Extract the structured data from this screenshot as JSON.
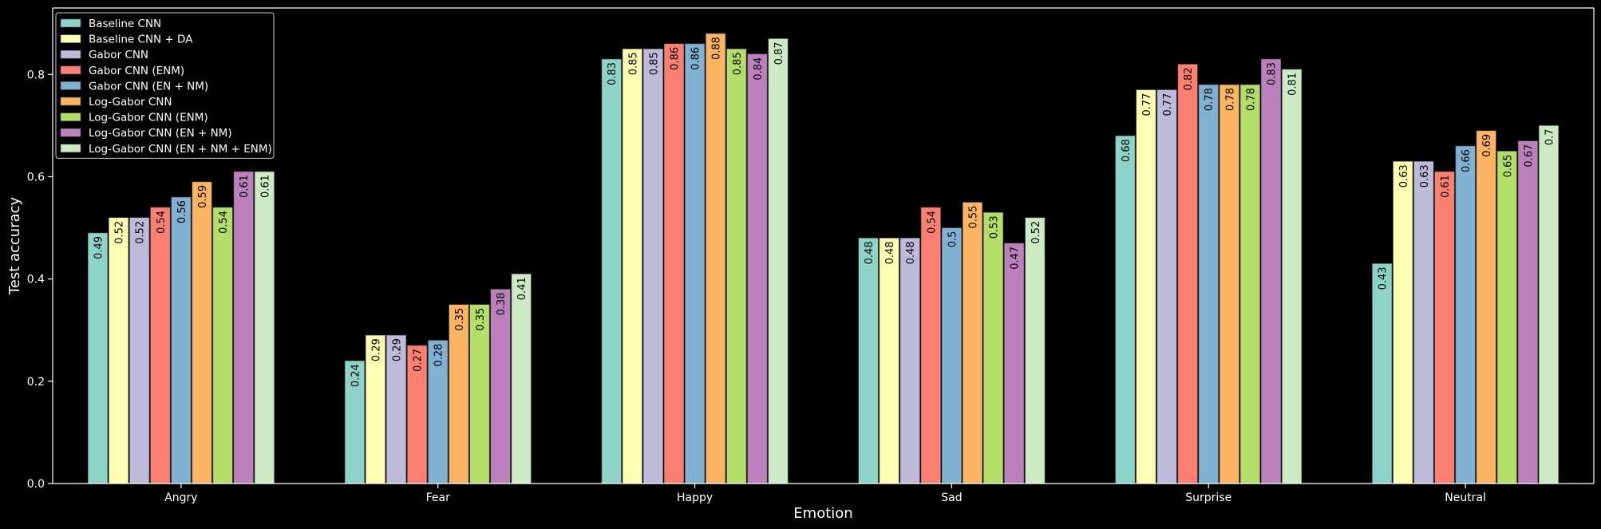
{
  "chart_data": {
    "type": "bar",
    "xlabel": "Emotion",
    "ylabel": "Test accuracy",
    "ylim": [
      0,
      0.93
    ],
    "yticks": [
      0.0,
      0.2,
      0.4,
      0.6,
      0.8
    ],
    "ytick_labels": [
      "0.0",
      "0.2",
      "0.4",
      "0.6",
      "0.8"
    ],
    "categories": [
      "Angry",
      "Fear",
      "Happy",
      "Sad",
      "Surprise",
      "Neutral"
    ],
    "legend_position": "top-left",
    "grid": false,
    "series": [
      {
        "name": "Baseline CNN",
        "color": "#8dd3c7",
        "values": [
          0.49,
          0.24,
          0.83,
          0.48,
          0.68,
          0.43
        ],
        "labels": [
          "0.49",
          "0.24",
          "0.83",
          "0.48",
          "0.68",
          "0.43"
        ]
      },
      {
        "name": "Baseline CNN + DA",
        "color": "#ffffb3",
        "values": [
          0.52,
          0.29,
          0.85,
          0.48,
          0.77,
          0.63
        ],
        "labels": [
          "0.52",
          "0.29",
          "0.85",
          "0.48",
          "0.77",
          "0.63"
        ]
      },
      {
        "name": "Gabor CNN",
        "color": "#bebada",
        "values": [
          0.52,
          0.29,
          0.85,
          0.48,
          0.77,
          0.63
        ],
        "labels": [
          "0.52",
          "0.29",
          "0.85",
          "0.48",
          "0.77",
          "0.63"
        ]
      },
      {
        "name": "Gabor CNN (ENM)",
        "color": "#fb8072",
        "values": [
          0.54,
          0.27,
          0.86,
          0.54,
          0.82,
          0.61
        ],
        "labels": [
          "0.54",
          "0.27",
          "0.86",
          "0.54",
          "0.82",
          "0.61"
        ]
      },
      {
        "name": "Gabor CNN (EN + NM)",
        "color": "#80b1d3",
        "values": [
          0.56,
          0.28,
          0.86,
          0.5,
          0.78,
          0.66
        ],
        "labels": [
          "0.56",
          "0.28",
          "0.86",
          "0.5",
          "0.78",
          "0.66"
        ]
      },
      {
        "name": "Log-Gabor CNN",
        "color": "#fdb462",
        "values": [
          0.59,
          0.35,
          0.88,
          0.55,
          0.78,
          0.69
        ],
        "labels": [
          "0.59",
          "0.35",
          "0.88",
          "0.55",
          "0.78",
          "0.69"
        ]
      },
      {
        "name": "Log-Gabor CNN (ENM)",
        "color": "#b3de69",
        "values": [
          0.54,
          0.35,
          0.85,
          0.53,
          0.78,
          0.65
        ],
        "labels": [
          "0.54",
          "0.35",
          "0.85",
          "0.53",
          "0.78",
          "0.65"
        ]
      },
      {
        "name": "Log-Gabor CNN (EN + NM)",
        "color": "#bc80bd",
        "values": [
          0.61,
          0.38,
          0.84,
          0.47,
          0.83,
          0.67
        ],
        "labels": [
          "0.61",
          "0.38",
          "0.84",
          "0.47",
          "0.83",
          "0.67"
        ]
      },
      {
        "name": "Log-Gabor CNN (EN + NM + ENM)",
        "color": "#ccebc5",
        "values": [
          0.61,
          0.41,
          0.87,
          0.52,
          0.81,
          0.7
        ],
        "labels": [
          "0.61",
          "0.41",
          "0.87",
          "0.52",
          "0.81",
          "0.7"
        ]
      }
    ]
  }
}
